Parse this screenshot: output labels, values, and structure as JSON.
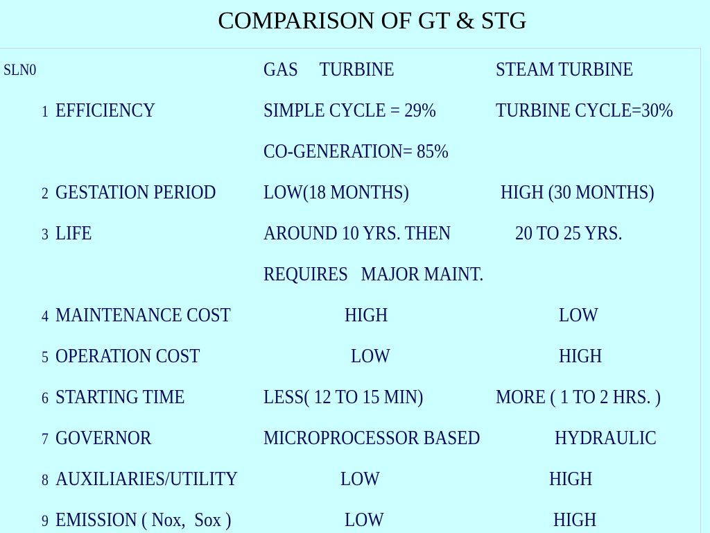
{
  "title": "COMPARISON OF GT & STG",
  "header": {
    "number": "SLN0",
    "gas": "GAS     TURBINE",
    "steam": "STEAM TURBINE"
  },
  "rows": [
    {
      "number": "1",
      "parameter": "EFFICIENCY",
      "gas": [
        "SIMPLE CYCLE = 29%",
        "CO-GENERATION= 85%"
      ],
      "steam": [
        "TURBINE CYCLE=30%"
      ]
    },
    {
      "number": "2",
      "parameter": "GESTATION PERIOD",
      "gas": [
        "LOW(18 MONTHS)"
      ],
      "steam": [
        "HIGH (30 MONTHS)"
      ]
    },
    {
      "number": "3",
      "parameter": "LIFE",
      "gas": [
        "AROUND 10 YRS. THEN",
        "REQUIRES   MAJOR MAINT."
      ],
      "steam": [
        "20 TO 25 YRS."
      ]
    },
    {
      "number": "4",
      "parameter": "MAINTENANCE COST",
      "gas": [
        "HIGH"
      ],
      "steam": [
        "LOW"
      ]
    },
    {
      "number": "5",
      "parameter": "OPERATION COST",
      "gas": [
        "LOW"
      ],
      "steam": [
        "HIGH"
      ]
    },
    {
      "number": "6",
      "parameter": "STARTING TIME",
      "gas": [
        "LESS( 12 TO 15 MIN)"
      ],
      "steam": [
        "MORE ( 1 TO 2 HRS. )"
      ]
    },
    {
      "number": "7",
      "parameter": "GOVERNOR",
      "gas": [
        "MICROPROCESSOR BASED"
      ],
      "steam": [
        "HYDRAULIC"
      ]
    },
    {
      "number": "8",
      "parameter": "AUXILIARIES/UTILITY",
      "gas": [
        "LOW"
      ],
      "steam": [
        "HIGH"
      ]
    },
    {
      "number": "9",
      "parameter": "EMISSION ( Nox,  Sox )",
      "gas": [
        "LOW"
      ],
      "steam": [
        "HIGH"
      ]
    }
  ]
}
